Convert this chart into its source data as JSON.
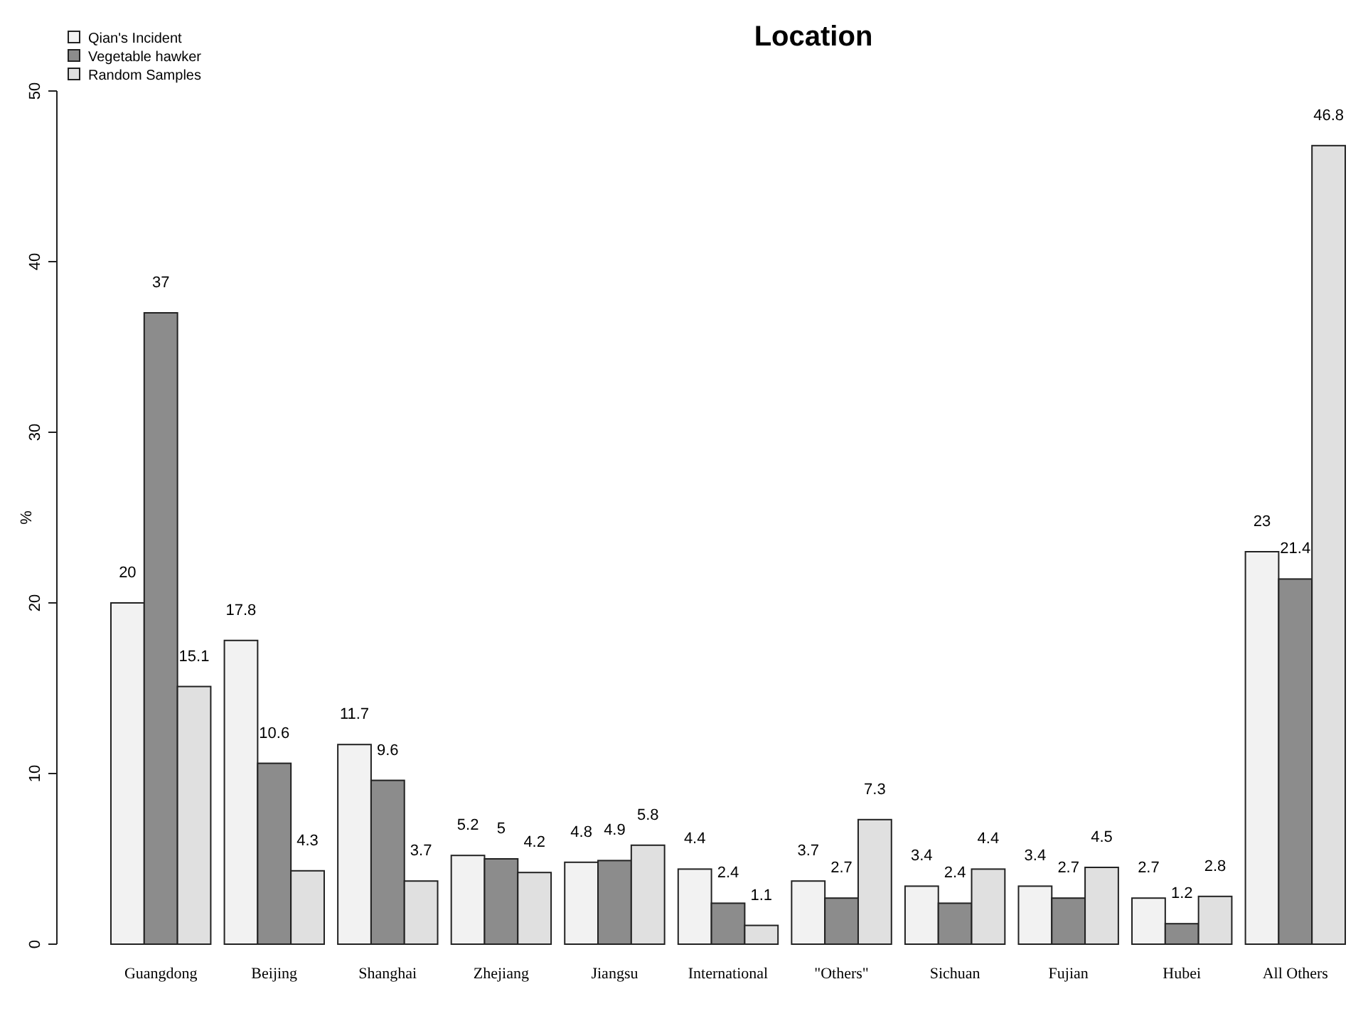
{
  "chart_data": {
    "type": "bar",
    "title": "Location",
    "ylabel": "%",
    "categories": [
      "Guangdong",
      "Beijing",
      "Shanghai",
      "Zhejiang",
      "Jiangsu",
      "International",
      "\"Others\"",
      "Sichuan",
      "Fujian",
      "Hubei",
      "All Others"
    ],
    "series": [
      {
        "name": "Qian's Incident",
        "color": "#f2f2f2",
        "values": [
          20,
          17.8,
          11.7,
          5.2,
          4.8,
          4.4,
          3.7,
          3.4,
          3.4,
          2.7,
          23
        ]
      },
      {
        "name": "Vegetable hawker",
        "color": "#8c8c8c",
        "values": [
          37,
          10.6,
          9.6,
          5,
          4.9,
          2.4,
          2.7,
          2.4,
          2.7,
          1.2,
          21.4
        ]
      },
      {
        "name": "Random Samples",
        "color": "#e0e0e0",
        "values": [
          15.1,
          4.3,
          3.7,
          4.2,
          5.8,
          1.1,
          7.3,
          4.4,
          4.5,
          2.8,
          46.8
        ]
      }
    ],
    "ylim": [
      0,
      50
    ],
    "yticks": [
      0,
      10,
      20,
      30,
      40,
      50
    ],
    "data_labels": true,
    "legend": "top left",
    "grid": false
  }
}
